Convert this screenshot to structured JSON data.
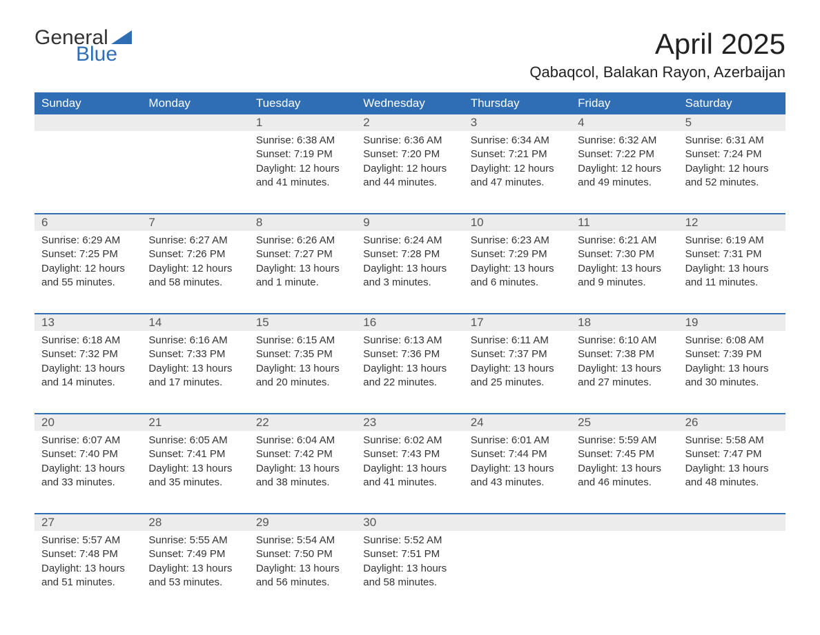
{
  "logo": {
    "word1": "General",
    "word2": "Blue"
  },
  "title": "April 2025",
  "location": "Qabaqcol, Balakan Rayon, Azerbaijan",
  "colors": {
    "header_bg": "#2f6eb5",
    "header_text": "#ffffff",
    "daynum_bg": "#ececec",
    "week_border": "#2f6eb5",
    "body_text": "#333333",
    "logo_gray": "#333333",
    "logo_blue": "#2f6eb5",
    "page_bg": "#ffffff"
  },
  "day_headers": [
    "Sunday",
    "Monday",
    "Tuesday",
    "Wednesday",
    "Thursday",
    "Friday",
    "Saturday"
  ],
  "weeks": [
    [
      {
        "day": "",
        "sunrise": "",
        "sunset": "",
        "daylight1": "",
        "daylight2": ""
      },
      {
        "day": "",
        "sunrise": "",
        "sunset": "",
        "daylight1": "",
        "daylight2": ""
      },
      {
        "day": "1",
        "sunrise": "Sunrise: 6:38 AM",
        "sunset": "Sunset: 7:19 PM",
        "daylight1": "Daylight: 12 hours",
        "daylight2": "and 41 minutes."
      },
      {
        "day": "2",
        "sunrise": "Sunrise: 6:36 AM",
        "sunset": "Sunset: 7:20 PM",
        "daylight1": "Daylight: 12 hours",
        "daylight2": "and 44 minutes."
      },
      {
        "day": "3",
        "sunrise": "Sunrise: 6:34 AM",
        "sunset": "Sunset: 7:21 PM",
        "daylight1": "Daylight: 12 hours",
        "daylight2": "and 47 minutes."
      },
      {
        "day": "4",
        "sunrise": "Sunrise: 6:32 AM",
        "sunset": "Sunset: 7:22 PM",
        "daylight1": "Daylight: 12 hours",
        "daylight2": "and 49 minutes."
      },
      {
        "day": "5",
        "sunrise": "Sunrise: 6:31 AM",
        "sunset": "Sunset: 7:24 PM",
        "daylight1": "Daylight: 12 hours",
        "daylight2": "and 52 minutes."
      }
    ],
    [
      {
        "day": "6",
        "sunrise": "Sunrise: 6:29 AM",
        "sunset": "Sunset: 7:25 PM",
        "daylight1": "Daylight: 12 hours",
        "daylight2": "and 55 minutes."
      },
      {
        "day": "7",
        "sunrise": "Sunrise: 6:27 AM",
        "sunset": "Sunset: 7:26 PM",
        "daylight1": "Daylight: 12 hours",
        "daylight2": "and 58 minutes."
      },
      {
        "day": "8",
        "sunrise": "Sunrise: 6:26 AM",
        "sunset": "Sunset: 7:27 PM",
        "daylight1": "Daylight: 13 hours",
        "daylight2": "and 1 minute."
      },
      {
        "day": "9",
        "sunrise": "Sunrise: 6:24 AM",
        "sunset": "Sunset: 7:28 PM",
        "daylight1": "Daylight: 13 hours",
        "daylight2": "and 3 minutes."
      },
      {
        "day": "10",
        "sunrise": "Sunrise: 6:23 AM",
        "sunset": "Sunset: 7:29 PM",
        "daylight1": "Daylight: 13 hours",
        "daylight2": "and 6 minutes."
      },
      {
        "day": "11",
        "sunrise": "Sunrise: 6:21 AM",
        "sunset": "Sunset: 7:30 PM",
        "daylight1": "Daylight: 13 hours",
        "daylight2": "and 9 minutes."
      },
      {
        "day": "12",
        "sunrise": "Sunrise: 6:19 AM",
        "sunset": "Sunset: 7:31 PM",
        "daylight1": "Daylight: 13 hours",
        "daylight2": "and 11 minutes."
      }
    ],
    [
      {
        "day": "13",
        "sunrise": "Sunrise: 6:18 AM",
        "sunset": "Sunset: 7:32 PM",
        "daylight1": "Daylight: 13 hours",
        "daylight2": "and 14 minutes."
      },
      {
        "day": "14",
        "sunrise": "Sunrise: 6:16 AM",
        "sunset": "Sunset: 7:33 PM",
        "daylight1": "Daylight: 13 hours",
        "daylight2": "and 17 minutes."
      },
      {
        "day": "15",
        "sunrise": "Sunrise: 6:15 AM",
        "sunset": "Sunset: 7:35 PM",
        "daylight1": "Daylight: 13 hours",
        "daylight2": "and 20 minutes."
      },
      {
        "day": "16",
        "sunrise": "Sunrise: 6:13 AM",
        "sunset": "Sunset: 7:36 PM",
        "daylight1": "Daylight: 13 hours",
        "daylight2": "and 22 minutes."
      },
      {
        "day": "17",
        "sunrise": "Sunrise: 6:11 AM",
        "sunset": "Sunset: 7:37 PM",
        "daylight1": "Daylight: 13 hours",
        "daylight2": "and 25 minutes."
      },
      {
        "day": "18",
        "sunrise": "Sunrise: 6:10 AM",
        "sunset": "Sunset: 7:38 PM",
        "daylight1": "Daylight: 13 hours",
        "daylight2": "and 27 minutes."
      },
      {
        "day": "19",
        "sunrise": "Sunrise: 6:08 AM",
        "sunset": "Sunset: 7:39 PM",
        "daylight1": "Daylight: 13 hours",
        "daylight2": "and 30 minutes."
      }
    ],
    [
      {
        "day": "20",
        "sunrise": "Sunrise: 6:07 AM",
        "sunset": "Sunset: 7:40 PM",
        "daylight1": "Daylight: 13 hours",
        "daylight2": "and 33 minutes."
      },
      {
        "day": "21",
        "sunrise": "Sunrise: 6:05 AM",
        "sunset": "Sunset: 7:41 PM",
        "daylight1": "Daylight: 13 hours",
        "daylight2": "and 35 minutes."
      },
      {
        "day": "22",
        "sunrise": "Sunrise: 6:04 AM",
        "sunset": "Sunset: 7:42 PM",
        "daylight1": "Daylight: 13 hours",
        "daylight2": "and 38 minutes."
      },
      {
        "day": "23",
        "sunrise": "Sunrise: 6:02 AM",
        "sunset": "Sunset: 7:43 PM",
        "daylight1": "Daylight: 13 hours",
        "daylight2": "and 41 minutes."
      },
      {
        "day": "24",
        "sunrise": "Sunrise: 6:01 AM",
        "sunset": "Sunset: 7:44 PM",
        "daylight1": "Daylight: 13 hours",
        "daylight2": "and 43 minutes."
      },
      {
        "day": "25",
        "sunrise": "Sunrise: 5:59 AM",
        "sunset": "Sunset: 7:45 PM",
        "daylight1": "Daylight: 13 hours",
        "daylight2": "and 46 minutes."
      },
      {
        "day": "26",
        "sunrise": "Sunrise: 5:58 AM",
        "sunset": "Sunset: 7:47 PM",
        "daylight1": "Daylight: 13 hours",
        "daylight2": "and 48 minutes."
      }
    ],
    [
      {
        "day": "27",
        "sunrise": "Sunrise: 5:57 AM",
        "sunset": "Sunset: 7:48 PM",
        "daylight1": "Daylight: 13 hours",
        "daylight2": "and 51 minutes."
      },
      {
        "day": "28",
        "sunrise": "Sunrise: 5:55 AM",
        "sunset": "Sunset: 7:49 PM",
        "daylight1": "Daylight: 13 hours",
        "daylight2": "and 53 minutes."
      },
      {
        "day": "29",
        "sunrise": "Sunrise: 5:54 AM",
        "sunset": "Sunset: 7:50 PM",
        "daylight1": "Daylight: 13 hours",
        "daylight2": "and 56 minutes."
      },
      {
        "day": "30",
        "sunrise": "Sunrise: 5:52 AM",
        "sunset": "Sunset: 7:51 PM",
        "daylight1": "Daylight: 13 hours",
        "daylight2": "and 58 minutes."
      },
      {
        "day": "",
        "sunrise": "",
        "sunset": "",
        "daylight1": "",
        "daylight2": ""
      },
      {
        "day": "",
        "sunrise": "",
        "sunset": "",
        "daylight1": "",
        "daylight2": ""
      },
      {
        "day": "",
        "sunrise": "",
        "sunset": "",
        "daylight1": "",
        "daylight2": ""
      }
    ]
  ]
}
